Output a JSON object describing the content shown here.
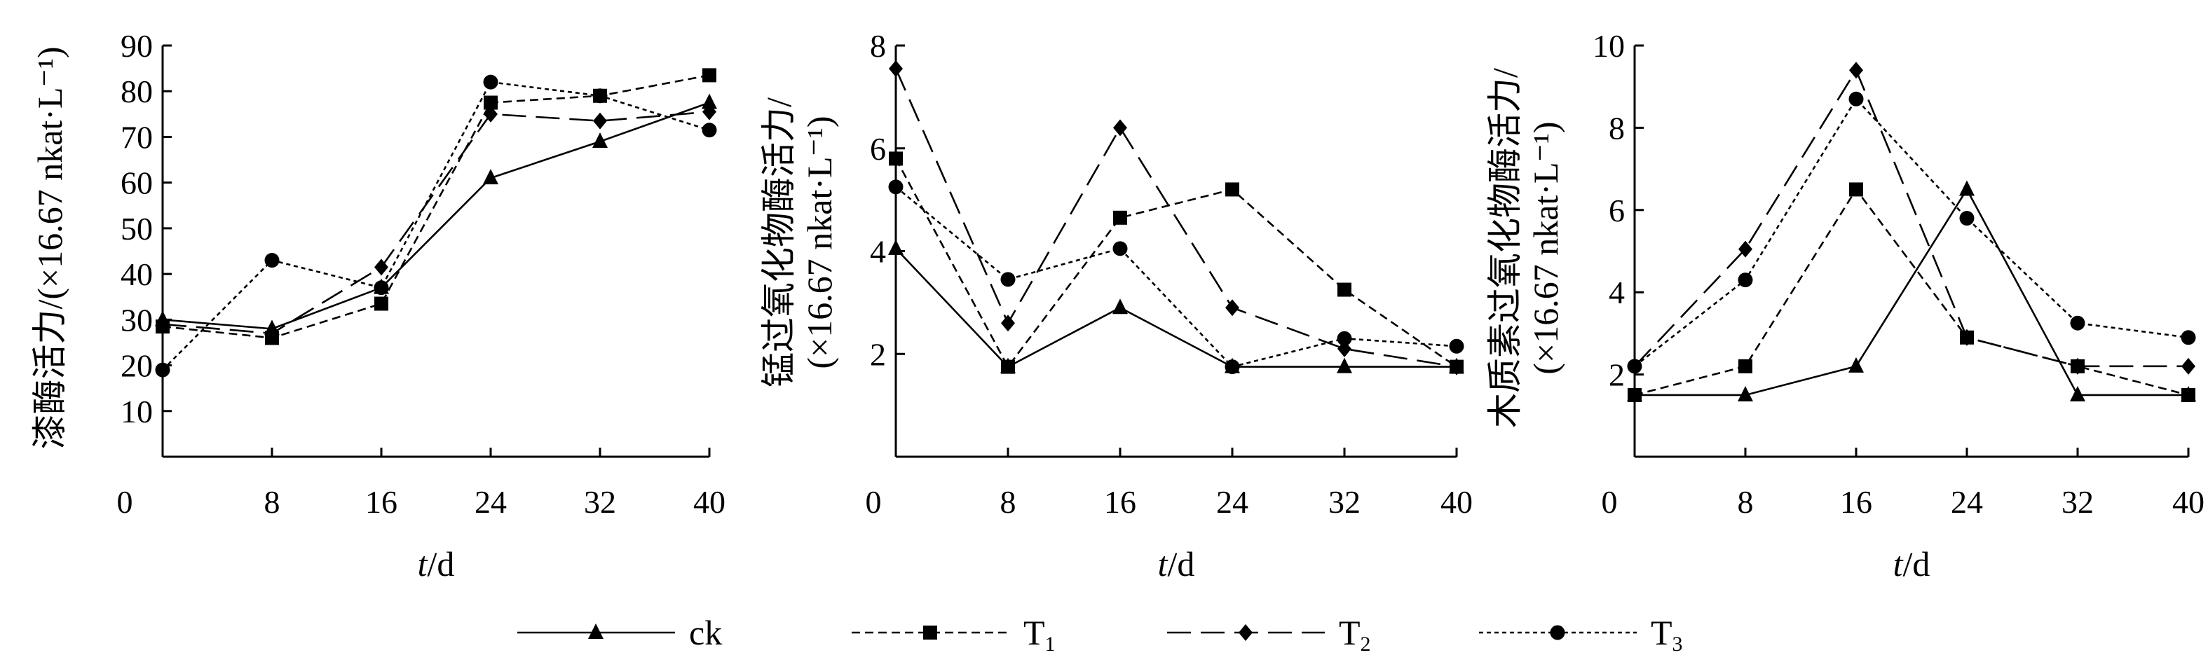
{
  "chart_data": [
    {
      "type": "line",
      "ylabel_lines": [
        "漆酶活力/(×16.67 nkat·L⁻¹)"
      ],
      "xlabel_t": "t",
      "xlabel_unit": "/d",
      "x": [
        0,
        8,
        16,
        24,
        32,
        40
      ],
      "xlim": [
        0,
        40
      ],
      "ylim": [
        0,
        90
      ],
      "yticks": [
        10,
        20,
        30,
        40,
        50,
        60,
        70,
        80,
        90
      ],
      "origin_label": "0",
      "series": [
        {
          "name": "ck",
          "values": [
            30,
            28,
            37,
            61,
            69,
            77.5
          ]
        },
        {
          "name": "T1",
          "values": [
            28.5,
            26,
            33.5,
            77.5,
            79,
            83.5
          ]
        },
        {
          "name": "T2",
          "values": [
            29,
            27,
            41.5,
            75,
            73.5,
            75.5
          ]
        },
        {
          "name": "T3",
          "values": [
            19,
            43,
            37,
            82,
            79,
            71.5
          ]
        }
      ]
    },
    {
      "type": "line",
      "ylabel_lines": [
        "锰过氧化物酶活力/",
        "(×16.67 nkat·L⁻¹)"
      ],
      "xlabel_t": "t",
      "xlabel_unit": "/d",
      "x": [
        0,
        8,
        16,
        24,
        32,
        40
      ],
      "xlim": [
        0,
        40
      ],
      "ylim": [
        0,
        8
      ],
      "yticks": [
        2,
        4,
        6,
        8
      ],
      "origin_label": "0",
      "series": [
        {
          "name": "ck",
          "values": [
            4.05,
            1.75,
            2.9,
            1.75,
            1.75,
            1.75
          ]
        },
        {
          "name": "T1",
          "values": [
            5.8,
            1.75,
            4.65,
            5.2,
            3.25,
            1.75
          ]
        },
        {
          "name": "T2",
          "values": [
            7.55,
            2.6,
            6.4,
            2.9,
            2.1,
            1.75
          ]
        },
        {
          "name": "T3",
          "values": [
            5.25,
            3.45,
            4.05,
            1.75,
            2.3,
            2.15
          ]
        }
      ]
    },
    {
      "type": "line",
      "ylabel_lines": [
        "木质素过氧化物酶活力/",
        "(×16.67 nkat·L⁻¹)"
      ],
      "xlabel_t": "t",
      "xlabel_unit": "/d",
      "x": [
        0,
        8,
        16,
        24,
        32,
        40
      ],
      "xlim": [
        0,
        40
      ],
      "ylim": [
        0,
        10
      ],
      "yticks": [
        2,
        4,
        6,
        8,
        10
      ],
      "origin_label": "0",
      "series": [
        {
          "name": "ck",
          "values": [
            1.5,
            1.5,
            2.2,
            6.5,
            1.5,
            1.5
          ]
        },
        {
          "name": "T1",
          "values": [
            1.5,
            2.2,
            6.5,
            2.9,
            2.2,
            1.5
          ]
        },
        {
          "name": "T2",
          "values": [
            2.2,
            5.05,
            9.4,
            2.9,
            2.2,
            2.2
          ]
        },
        {
          "name": "T3",
          "values": [
            2.2,
            4.3,
            8.7,
            5.8,
            3.25,
            2.9
          ]
        }
      ]
    }
  ],
  "legend": {
    "position": "bottom",
    "items": [
      {
        "key": "ck",
        "label": "ck",
        "sub": ""
      },
      {
        "key": "T1",
        "label": "T",
        "sub": "1"
      },
      {
        "key": "T2",
        "label": "T",
        "sub": "2"
      },
      {
        "key": "T3",
        "label": "T",
        "sub": "3"
      }
    ]
  },
  "styles": {
    "ck": {
      "dash": "",
      "marker": "triangle"
    },
    "T1": {
      "dash": "12,7",
      "marker": "square"
    },
    "T2": {
      "dash": "34,14",
      "marker": "diamond"
    },
    "T3": {
      "dash": "6,5",
      "marker": "circle"
    }
  }
}
